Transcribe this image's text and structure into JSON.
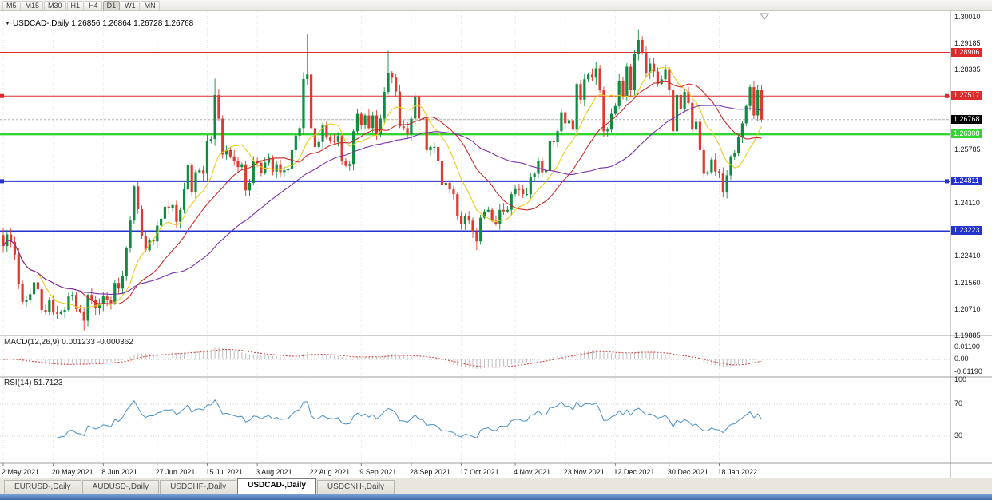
{
  "toolbar": {
    "timeframes": [
      "M5",
      "M15",
      "M30",
      "H1",
      "H4",
      "D1",
      "W1",
      "MN"
    ],
    "active": "D1"
  },
  "chart": {
    "dropdown_icon": "▼",
    "title": "USDCAD-,Daily 1.26856 1.26864 1.26728 1.26768"
  },
  "chart_data": {
    "type": "candlestick",
    "symbol": "USDCAD",
    "timeframe": "Daily",
    "quote": {
      "open": 1.26856,
      "high": 1.26864,
      "low": 1.26728,
      "close": 1.26768
    },
    "price_axis": {
      "max": 1.3001,
      "min": 1.19885,
      "plain_labels": [
        "1.30010",
        "1.29185",
        "1.28335",
        "1.25785",
        "1.24110",
        "1.22410",
        "1.21560",
        "1.20710",
        "1.19885"
      ]
    },
    "levels": [
      {
        "price": 1.28906,
        "label": "1.28906",
        "color": "#dd2b2b",
        "width": 1,
        "endpoints": false
      },
      {
        "price": 1.27517,
        "label": "1.27517",
        "color": "#dd2b2b",
        "width": 1,
        "endpoints": true
      },
      {
        "price": 1.26308,
        "label": "1.26308",
        "color": "#35d435",
        "width": 3,
        "endpoints": false
      },
      {
        "price": 1.24811,
        "label": "1.24811",
        "color": "#2433cf",
        "width": 2,
        "endpoints": true
      },
      {
        "price": 1.23223,
        "label": "1.23223",
        "color": "#2433cf",
        "width": 2,
        "endpoints": false
      }
    ],
    "current_price": {
      "value": 1.26768,
      "label": "1.26768",
      "badge_color": "#000000"
    },
    "candles": {
      "first_open": 1.231,
      "closes": [
        1.2275,
        1.2312,
        1.2288,
        1.2248,
        1.2155,
        1.2098,
        1.2105,
        1.2122,
        1.216,
        1.2138,
        1.2072,
        1.2066,
        1.2105,
        1.2064,
        1.206,
        1.2066,
        1.2072,
        1.2115,
        1.212,
        1.2075,
        1.2066,
        1.2038,
        1.212,
        1.2104,
        1.2078,
        1.209,
        1.2115,
        1.2105,
        1.2094,
        1.2158,
        1.214,
        1.218,
        1.2268,
        1.2356,
        1.2465,
        1.2392,
        1.2306,
        1.2262,
        1.2295,
        1.229,
        1.234,
        1.2362,
        1.24,
        1.2396,
        1.2405,
        1.2352,
        1.239,
        1.2455,
        1.2532,
        1.2445,
        1.251,
        1.2516,
        1.2505,
        1.261,
        1.2615,
        1.2755,
        1.268,
        1.2566,
        1.258,
        1.256,
        1.2545,
        1.2526,
        1.2535,
        1.2452,
        1.2476,
        1.2545,
        1.254,
        1.2506,
        1.254,
        1.2556,
        1.2512,
        1.2535,
        1.251,
        1.2516,
        1.252,
        1.258,
        1.2626,
        1.265,
        1.2806,
        1.282,
        1.265,
        1.259,
        1.2606,
        1.266,
        1.262,
        1.261,
        1.2606,
        1.2625,
        1.2545,
        1.253,
        1.2536,
        1.264,
        1.2695,
        1.266,
        1.269,
        1.265,
        1.269,
        1.263,
        1.268,
        1.2765,
        1.2825,
        1.281,
        1.2766,
        1.2655,
        1.265,
        1.263,
        1.268,
        1.275,
        1.268,
        1.268,
        1.258,
        1.259,
        1.259,
        1.2545,
        1.247,
        1.2476,
        1.2455,
        1.244,
        1.237,
        1.2345,
        1.237,
        1.2356,
        1.232,
        1.229,
        1.2365,
        1.2385,
        1.239,
        1.2355,
        1.2345,
        1.239,
        1.2385,
        1.239,
        1.244,
        1.2456,
        1.2455,
        1.244,
        1.244,
        1.2495,
        1.2505,
        1.2545,
        1.251,
        1.2515,
        1.261,
        1.2605,
        1.264,
        1.27,
        1.2665,
        1.2675,
        1.2645,
        1.279,
        1.274,
        1.2805,
        1.282,
        1.281,
        1.284,
        1.277,
        1.264,
        1.2645,
        1.2695,
        1.272,
        1.28,
        1.275,
        1.2845,
        1.277,
        1.2885,
        1.293,
        1.289,
        1.2825,
        1.2855,
        1.283,
        1.279,
        1.2805,
        1.2835,
        1.277,
        1.264,
        1.2755,
        1.271,
        1.2765,
        1.273,
        1.2645,
        1.267,
        1.258,
        1.2505,
        1.251,
        1.255,
        1.2512,
        1.2506,
        1.2445,
        1.25,
        1.256,
        1.257,
        1.262,
        1.2665,
        1.272,
        1.278,
        1.269,
        1.277,
        1.2677
      ]
    },
    "wick_overrides": [
      {
        "i": 21,
        "l": 1.2007
      },
      {
        "i": 55,
        "h": 1.2807
      },
      {
        "i": 79,
        "h": 1.2949
      },
      {
        "i": 100,
        "h": 1.2896
      },
      {
        "i": 123,
        "l": 1.2262
      },
      {
        "i": 165,
        "h": 1.2964
      },
      {
        "i": 187,
        "l": 1.243
      }
    ],
    "date_ticks": [
      {
        "label": "2 May 2021",
        "i": 0
      },
      {
        "label": "20 May 2021",
        "i": 13
      },
      {
        "label": "8 Jun 2021",
        "i": 26
      },
      {
        "label": "27 Jun 2021",
        "i": 40
      },
      {
        "label": "15 Jul 2021",
        "i": 53
      },
      {
        "label": "3 Aug 2021",
        "i": 66
      },
      {
        "label": "22 Aug 2021",
        "i": 80
      },
      {
        "label": "9 Sep 2021",
        "i": 93
      },
      {
        "label": "28 Sep 2021",
        "i": 106
      },
      {
        "label": "17 Oct 2021",
        "i": 119
      },
      {
        "label": "4 Nov 2021",
        "i": 133
      },
      {
        "label": "23 Nov 2021",
        "i": 146
      },
      {
        "label": "12 Dec 2021",
        "i": 159
      },
      {
        "label": "30 Dec 2021",
        "i": 173
      },
      {
        "label": "18 Jan 2022",
        "i": 186
      }
    ],
    "moving_averages": [
      {
        "name": "fast",
        "period": 10,
        "color": "#e3cf1d"
      },
      {
        "name": "medium",
        "period": 21,
        "color": "#cc2a2a"
      },
      {
        "name": "slow",
        "period": 45,
        "color": "#7d2fa8"
      }
    ],
    "macd": {
      "title": "MACD(12,26,9) 0.001233 -0.000362",
      "fast": 12,
      "slow": 26,
      "signal": 9,
      "axis_labels": [
        "0.01100",
        "0.00",
        "-0.01190"
      ],
      "histogram_color": "#bdbdbd",
      "signal_color": "#cf3a34"
    },
    "rsi": {
      "title": "RSI(14) 51.7123",
      "period": 14,
      "axis_labels": [
        "100",
        "70",
        "30"
      ],
      "levels": [
        70,
        30
      ],
      "color": "#4a8fc5"
    }
  },
  "candle_colors": {
    "up": "#0e8c40",
    "down": "#dc3b2d"
  },
  "tabs": [
    {
      "label": "EURUSD-,Daily",
      "active": false
    },
    {
      "label": "AUDUSD-,Daily",
      "active": false
    },
    {
      "label": "USDCHF-,Daily",
      "active": false
    },
    {
      "label": "USDCAD-,Daily",
      "active": true
    },
    {
      "label": "USDCNH-,Daily",
      "active": false
    }
  ]
}
